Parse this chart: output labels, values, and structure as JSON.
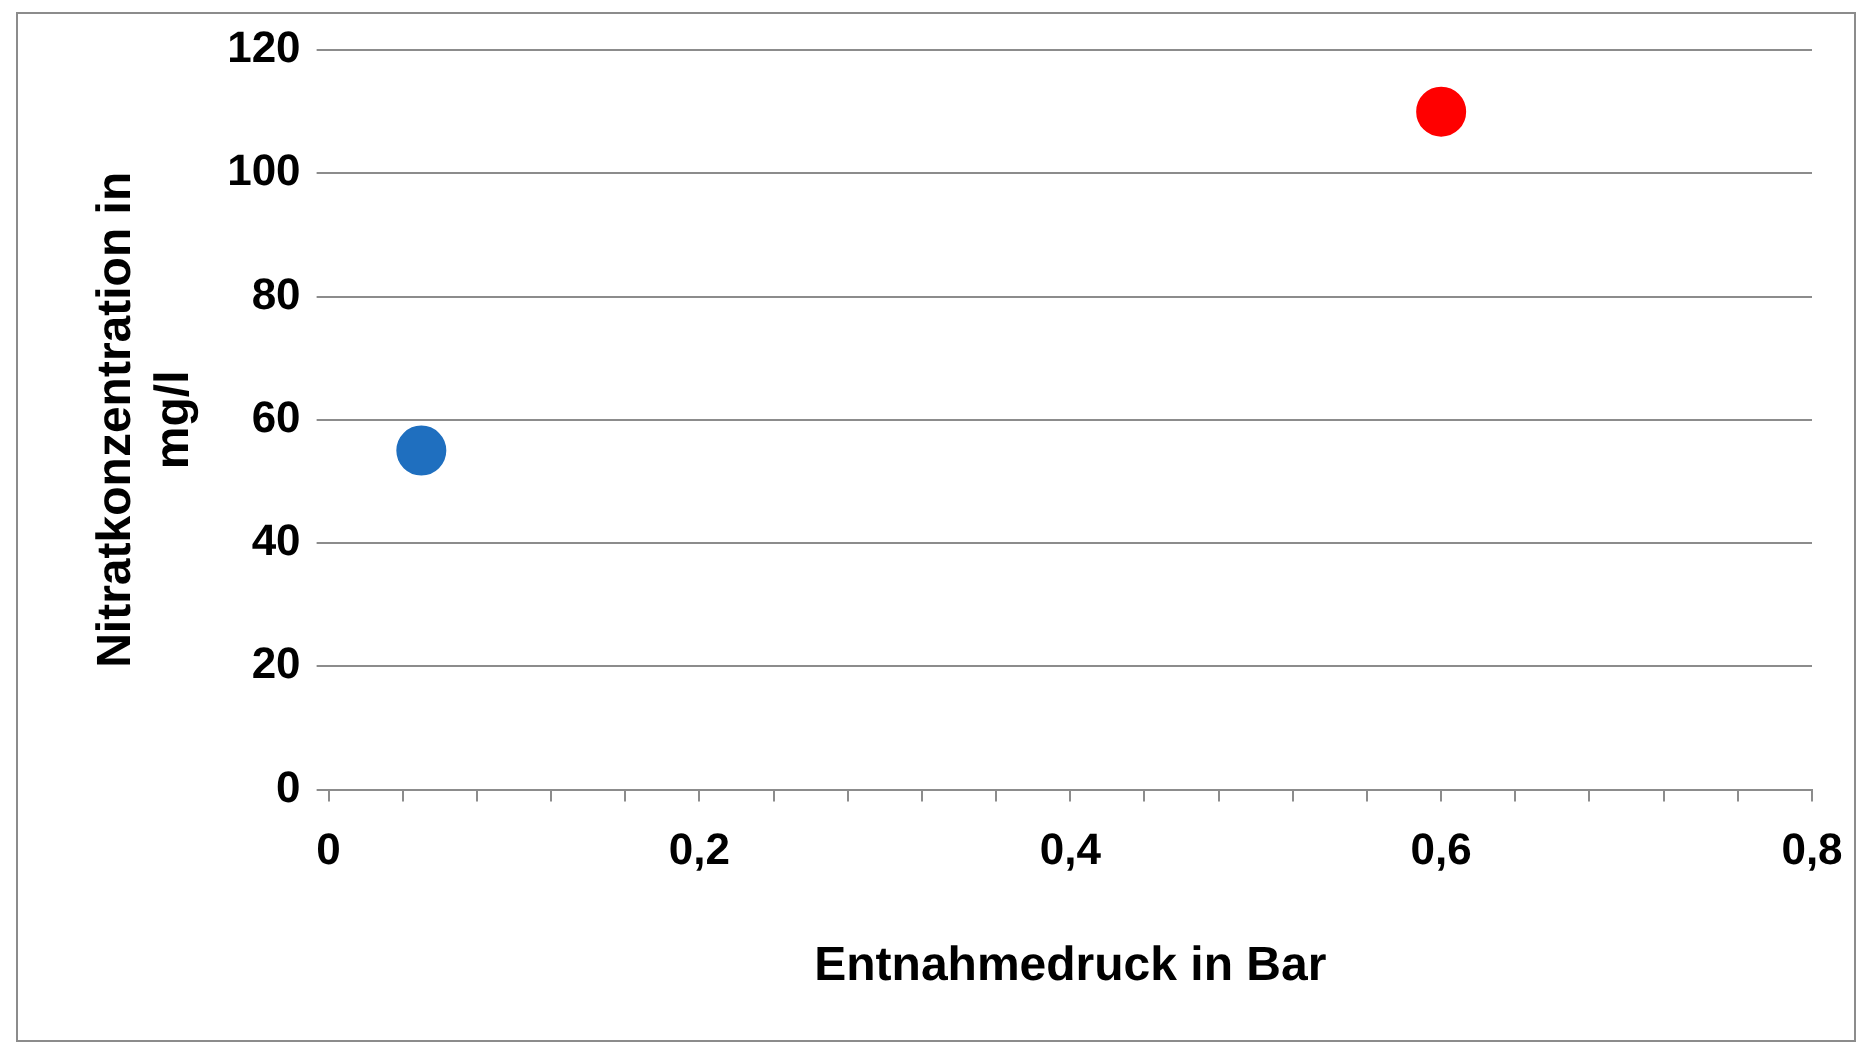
{
  "chart_data": {
    "type": "scatter",
    "xlabel": "Entnahmedruck in Bar",
    "ylabel": "Nitratkonzentration in mg/l",
    "series": [
      {
        "x": [
          0.05,
          0.6
        ],
        "values": [
          55,
          110
        ],
        "colors": [
          "#1f6fbf",
          "#ff0000"
        ]
      }
    ],
    "xlim": [
      0,
      0.8
    ],
    "xticks": [
      0,
      {
        "value": 0.04,
        "label": null
      },
      {
        "value": 0.08,
        "label": null
      },
      {
        "value": 0.12,
        "label": null
      },
      {
        "value": 0.16,
        "label": null
      },
      {
        "value": 0.2,
        "label": "0,2"
      },
      {
        "value": 0.24,
        "label": null
      },
      {
        "value": 0.28,
        "label": null
      },
      {
        "value": 0.32,
        "label": null
      },
      {
        "value": 0.36,
        "label": null
      },
      {
        "value": 0.4,
        "label": "0,4"
      },
      {
        "value": 0.44,
        "label": null
      },
      {
        "value": 0.48,
        "label": null
      },
      {
        "value": 0.52,
        "label": null
      },
      {
        "value": 0.56,
        "label": null
      },
      {
        "value": 0.6,
        "label": "0,6"
      },
      {
        "value": 0.64,
        "label": null
      },
      {
        "value": 0.68,
        "label": null
      },
      {
        "value": 0.72,
        "label": null
      },
      {
        "value": 0.76,
        "label": null
      },
      {
        "value": 0.8,
        "label": "0,8"
      }
    ],
    "ylim": [
      0,
      120
    ],
    "yticks": [
      0,
      20,
      40,
      60,
      80,
      100,
      120
    ],
    "grid": "y",
    "legend": false,
    "marker": "circle"
  }
}
